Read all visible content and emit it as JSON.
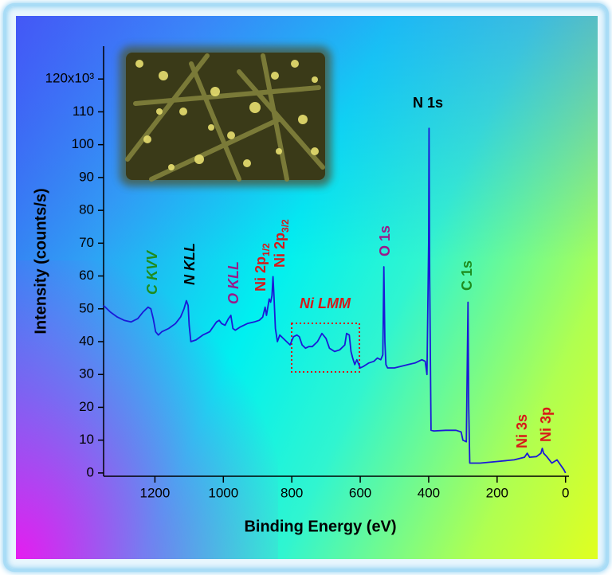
{
  "chart_data": {
    "type": "line",
    "xlabel": "Binding Energy (eV)",
    "ylabel": "Intensity (counts/s)",
    "color": "#1a1ad8",
    "xlim": [
      1350,
      -10
    ],
    "ylim": [
      -1,
      130
    ],
    "xticks": [
      1200,
      1000,
      800,
      600,
      400,
      200,
      0
    ],
    "yticks": [
      0,
      10,
      20,
      30,
      40,
      50,
      60,
      70,
      80,
      90,
      100,
      110,
      {
        "value": 120,
        "label": "120x10³"
      }
    ],
    "x": [
      1350,
      1330,
      1310,
      1290,
      1270,
      1250,
      1235,
      1220,
      1212,
      1205,
      1198,
      1190,
      1180,
      1160,
      1140,
      1125,
      1115,
      1108,
      1103,
      1100,
      1095,
      1080,
      1060,
      1040,
      1020,
      1012,
      1005,
      995,
      985,
      978,
      972,
      965,
      950,
      930,
      910,
      895,
      885,
      878,
      874,
      866,
      862,
      858,
      855,
      852,
      848,
      842,
      835,
      825,
      815,
      805,
      795,
      785,
      778,
      770,
      760,
      750,
      740,
      725,
      712,
      700,
      690,
      675,
      660,
      645,
      640,
      632,
      627,
      622,
      616,
      610,
      600,
      590,
      575,
      560,
      550,
      540,
      534,
      531,
      528,
      525,
      520,
      500,
      480,
      460,
      440,
      420,
      410,
      405,
      400,
      399,
      397,
      393,
      385,
      350,
      320,
      305,
      300,
      290,
      285,
      283,
      280,
      250,
      200,
      150,
      120,
      112,
      105,
      85,
      72,
      68,
      64,
      55,
      40,
      25,
      15,
      5,
      0
    ],
    "values": [
      51,
      49,
      47.5,
      46.5,
      46,
      47,
      49,
      50.5,
      50,
      47,
      43,
      42,
      43,
      44,
      45.5,
      47.5,
      50,
      52.5,
      51,
      45,
      40,
      40.5,
      42,
      43,
      46,
      46.5,
      45.5,
      45,
      47,
      48,
      44,
      43.5,
      44.5,
      45.5,
      46,
      46.5,
      47.5,
      50.5,
      48,
      53,
      52,
      54,
      59.8,
      54,
      44,
      40,
      42,
      41,
      40,
      39,
      41.5,
      42,
      41.5,
      39,
      38,
      38.5,
      38.5,
      40,
      42.5,
      41,
      38,
      37,
      37.5,
      39,
      42.5,
      42,
      37,
      35,
      33,
      34.5,
      32,
      32.5,
      33.5,
      34,
      35,
      34.5,
      36,
      62.8,
      40,
      33,
      32,
      32,
      32.5,
      33,
      33.5,
      34.5,
      34,
      30,
      70,
      105,
      60,
      13,
      12.8,
      13,
      13,
      12.5,
      10,
      9.5,
      52,
      20,
      3,
      3,
      3.5,
      4,
      4.8,
      6,
      4.8,
      5,
      6,
      7.5,
      6,
      5,
      3,
      4,
      2.5,
      1,
      0
    ],
    "annotations": [
      {
        "text": "C KVV",
        "color": "#1e8c1e",
        "style": "italic"
      },
      {
        "text": "N KLL",
        "color": "#000000",
        "style": "italic"
      },
      {
        "text": "O KLL",
        "color": "#9a1a8a",
        "style": "italic"
      },
      {
        "text": "Ni 2p",
        "sub": "1/2",
        "color": "#d81818",
        "style": "normal"
      },
      {
        "text": "Ni 2p",
        "sub": "3/2",
        "color": "#d81818",
        "style": "normal"
      },
      {
        "text": "Ni LMM",
        "color": "#d81818",
        "style": "italic"
      },
      {
        "text": "O 1s",
        "color": "#9a1a8a",
        "style": "normal"
      },
      {
        "text": "N 1s",
        "color": "#000000",
        "style": "normal"
      },
      {
        "text": "C 1s",
        "color": "#1e8c1e",
        "style": "normal"
      },
      {
        "text": "Ni 3s",
        "color": "#d81818",
        "style": "normal"
      },
      {
        "text": "Ni 3p",
        "color": "#d81818",
        "style": "normal"
      }
    ]
  }
}
